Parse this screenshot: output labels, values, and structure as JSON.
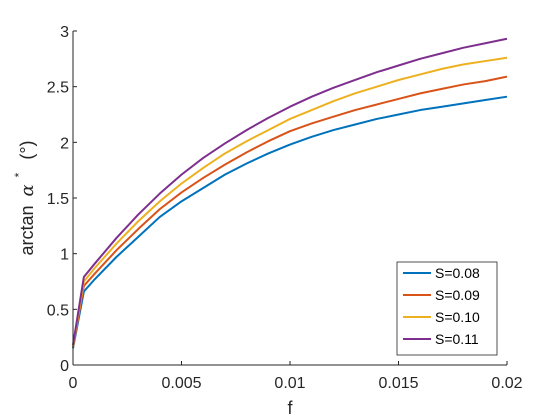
{
  "chart_data": {
    "type": "line",
    "xlabel": "f",
    "ylabel": {
      "prefix": "arctan",
      "symbol": "α",
      "superscript": "*",
      "unit": "(°)"
    },
    "xlim": [
      0,
      0.02
    ],
    "ylim": [
      0,
      3
    ],
    "x_ticks": [
      "0",
      "0.005",
      "0.01",
      "0.015",
      "0.02"
    ],
    "x_tick_values": [
      0,
      0.005,
      0.01,
      0.015,
      0.02
    ],
    "y_ticks": [
      "0",
      "0.5",
      "1",
      "1.5",
      "2",
      "2.5",
      "3"
    ],
    "y_tick_values": [
      0,
      0.5,
      1,
      1.5,
      2,
      2.5,
      3
    ],
    "grid": false,
    "legend_position": "bottom-right",
    "x": [
      0,
      0.0005,
      0.001,
      0.002,
      0.003,
      0.004,
      0.005,
      0.006,
      0.007,
      0.008,
      0.009,
      0.01,
      0.011,
      0.012,
      0.013,
      0.014,
      0.015,
      0.016,
      0.017,
      0.018,
      0.019,
      0.02
    ],
    "series": [
      {
        "name": "S=0.08",
        "color": "#0072BD",
        "values": [
          0.15,
          0.66,
          0.77,
          0.97,
          1.15,
          1.33,
          1.47,
          1.59,
          1.71,
          1.81,
          1.9,
          1.98,
          2.05,
          2.11,
          2.16,
          2.21,
          2.25,
          2.29,
          2.32,
          2.35,
          2.38,
          2.41
        ]
      },
      {
        "name": "S=0.09",
        "color": "#D95319",
        "values": [
          0.16,
          0.71,
          0.82,
          1.03,
          1.22,
          1.4,
          1.55,
          1.68,
          1.8,
          1.91,
          2.01,
          2.1,
          2.17,
          2.23,
          2.29,
          2.34,
          2.39,
          2.44,
          2.48,
          2.52,
          2.55,
          2.59
        ]
      },
      {
        "name": "S=0.10",
        "color": "#EDB120",
        "values": [
          0.17,
          0.75,
          0.87,
          1.09,
          1.29,
          1.47,
          1.63,
          1.77,
          1.9,
          2.01,
          2.11,
          2.21,
          2.29,
          2.37,
          2.44,
          2.5,
          2.56,
          2.61,
          2.66,
          2.7,
          2.73,
          2.76
        ]
      },
      {
        "name": "S=0.11",
        "color": "#7E2F8E",
        "values": [
          0.18,
          0.79,
          0.91,
          1.14,
          1.35,
          1.54,
          1.71,
          1.86,
          1.99,
          2.11,
          2.22,
          2.32,
          2.41,
          2.49,
          2.56,
          2.63,
          2.69,
          2.75,
          2.8,
          2.85,
          2.89,
          2.93
        ]
      }
    ]
  }
}
